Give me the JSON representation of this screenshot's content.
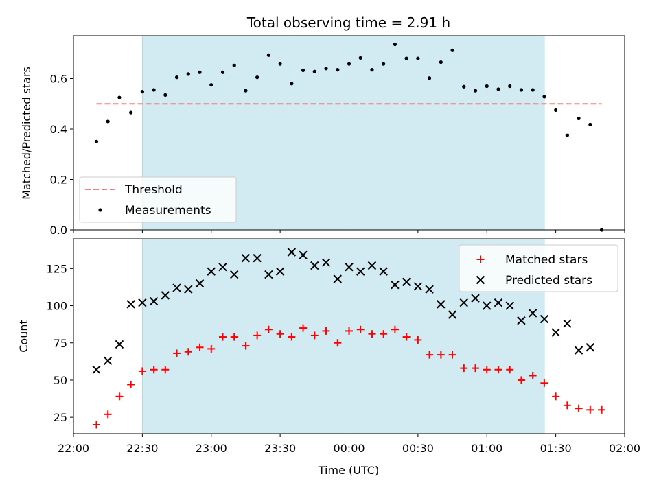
{
  "chart_data": [
    {
      "type": "scatter",
      "title": "Total observing time = 2.91 h",
      "xlabel": "",
      "ylabel": "Matched/Predicted stars",
      "ylim": [
        0,
        0.77
      ],
      "yticks": [
        "0.0",
        "0.2",
        "0.4",
        "0.6"
      ],
      "ytick_values": [
        0,
        0.2,
        0.4,
        0.6
      ],
      "x": [
        "22:10",
        "22:15",
        "22:20",
        "22:25",
        "22:30",
        "22:35",
        "22:40",
        "22:45",
        "22:50",
        "22:55",
        "23:00",
        "23:05",
        "23:10",
        "23:15",
        "23:20",
        "23:25",
        "23:30",
        "23:35",
        "23:40",
        "23:45",
        "23:50",
        "23:55",
        "00:00",
        "00:05",
        "00:10",
        "00:15",
        "00:20",
        "00:25",
        "00:30",
        "00:35",
        "00:40",
        "00:45",
        "00:50",
        "00:55",
        "01:00",
        "01:05",
        "01:10",
        "01:15",
        "01:20",
        "01:25",
        "01:30",
        "01:35",
        "01:40",
        "01:45",
        "01:50"
      ],
      "highlight_span": [
        "22:30",
        "01:25"
      ],
      "threshold": {
        "value": 0.5,
        "from": "22:10",
        "to": "01:50",
        "color": "#f08080"
      },
      "series": [
        {
          "name": "Measurements",
          "color": "#000000",
          "values": [
            0.35,
            0.43,
            0.525,
            0.465,
            0.548,
            0.555,
            0.535,
            0.605,
            0.618,
            0.625,
            0.575,
            0.625,
            0.652,
            0.552,
            0.605,
            0.693,
            0.658,
            0.58,
            0.633,
            0.628,
            0.64,
            0.635,
            0.658,
            0.682,
            0.635,
            0.658,
            0.736,
            0.68,
            0.68,
            0.602,
            0.665,
            0.712,
            0.568,
            0.552,
            0.57,
            0.558,
            0.57,
            0.555,
            0.555,
            0.528,
            0.475,
            0.375,
            0.442,
            0.418,
            0.0
          ]
        }
      ],
      "legend": {
        "placement": "lower-left",
        "entries": [
          {
            "label": "Threshold",
            "marker": "dash",
            "color": "#f08080"
          },
          {
            "label": "Measurements",
            "marker": "dot",
            "color": "#000000"
          }
        ]
      }
    },
    {
      "type": "scatter",
      "title": "",
      "xlabel": "Time (UTC)",
      "ylabel": "Count",
      "ylim": [
        14,
        145
      ],
      "yticks": [
        "25",
        "50",
        "75",
        "100",
        "125"
      ],
      "ytick_values": [
        25,
        50,
        75,
        100,
        125
      ],
      "xticks": [
        "22:00",
        "22:30",
        "23:00",
        "23:30",
        "00:00",
        "00:30",
        "01:00",
        "01:30",
        "02:00"
      ],
      "highlight_span": [
        "22:30",
        "01:25"
      ],
      "series": [
        {
          "name": "Matched stars",
          "marker": "plus",
          "color": "#ff0000",
          "x": [
            "22:10",
            "22:15",
            "22:20",
            "22:25",
            "22:30",
            "22:35",
            "22:40",
            "22:45",
            "22:50",
            "22:55",
            "23:00",
            "23:05",
            "23:10",
            "23:15",
            "23:20",
            "23:25",
            "23:30",
            "23:35",
            "23:40",
            "23:45",
            "23:50",
            "23:55",
            "00:00",
            "00:05",
            "00:10",
            "00:15",
            "00:20",
            "00:25",
            "00:30",
            "00:35",
            "00:40",
            "00:45",
            "00:50",
            "00:55",
            "01:00",
            "01:05",
            "01:10",
            "01:15",
            "01:20",
            "01:25",
            "01:30",
            "01:35",
            "01:40",
            "01:45",
            "01:50"
          ],
          "values": [
            20,
            27,
            39,
            47,
            56,
            57,
            57,
            68,
            69,
            72,
            71,
            79,
            79,
            73,
            80,
            84,
            81,
            79,
            85,
            80,
            83,
            75,
            83,
            84,
            81,
            81,
            84,
            79,
            77,
            67,
            67,
            67,
            58,
            58,
            57,
            57,
            57,
            50,
            53,
            48,
            39,
            33,
            31,
            30,
            30
          ]
        },
        {
          "name": "Predicted stars",
          "marker": "x",
          "color": "#000000",
          "x": [
            "22:10",
            "22:15",
            "22:20",
            "22:25",
            "22:30",
            "22:35",
            "22:40",
            "22:45",
            "22:50",
            "22:55",
            "23:00",
            "23:05",
            "23:10",
            "23:15",
            "23:20",
            "23:25",
            "23:30",
            "23:35",
            "23:40",
            "23:45",
            "23:50",
            "23:55",
            "00:00",
            "00:05",
            "00:10",
            "00:15",
            "00:20",
            "00:25",
            "00:30",
            "00:35",
            "00:40",
            "00:45",
            "00:50",
            "00:55",
            "01:00",
            "01:05",
            "01:10",
            "01:15",
            "01:20",
            "01:25",
            "01:30",
            "01:35",
            "01:40",
            "01:45"
          ],
          "values": [
            57,
            63,
            74,
            101,
            102,
            103,
            107,
            112,
            111,
            115,
            123,
            126,
            121,
            132,
            132,
            121,
            123,
            136,
            134,
            127,
            129,
            118,
            126,
            123,
            127,
            123,
            114,
            116,
            113,
            111,
            101,
            94,
            102,
            105,
            100,
            102,
            100,
            90,
            95,
            91,
            82,
            88,
            70,
            72
          ]
        }
      ],
      "legend": {
        "placement": "upper-right",
        "entries": [
          {
            "label": "Matched stars",
            "marker": "plus",
            "color": "#ff0000"
          },
          {
            "label": "Predicted stars",
            "marker": "x",
            "color": "#000000"
          }
        ]
      }
    }
  ],
  "colors": {
    "span": "#add8e6",
    "axes": "#000000"
  }
}
